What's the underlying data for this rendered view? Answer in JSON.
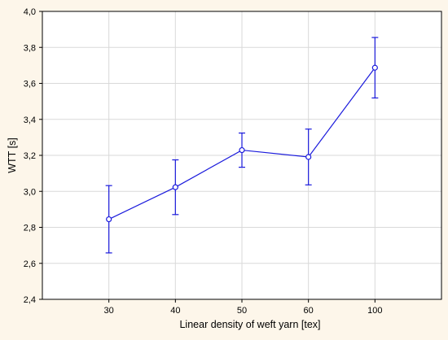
{
  "chart_data": {
    "type": "line",
    "title": "",
    "xlabel": "Linear density of weft yarn  [tex]",
    "ylabel": "WTT [s]",
    "categories": [
      "30",
      "40",
      "50",
      "60",
      "100"
    ],
    "series": [
      {
        "values": [
          2.845,
          3.023,
          3.229,
          3.191,
          3.687
        ],
        "error_low": [
          2.658,
          2.871,
          3.134,
          3.036,
          3.519
        ],
        "error_high": [
          3.032,
          3.175,
          3.324,
          3.346,
          3.855
        ]
      }
    ],
    "ylim": [
      2.4,
      4.0
    ],
    "yticks": [
      "2,4",
      "2,6",
      "2,8",
      "3,0",
      "3,2",
      "3,4",
      "3,6",
      "3,8",
      "4,0"
    ],
    "grid": true,
    "colors": {
      "series": "#1a1adc",
      "background": "#fdf6ea",
      "plot_area": "#ffffff",
      "grid": "#d9d9d9"
    }
  }
}
